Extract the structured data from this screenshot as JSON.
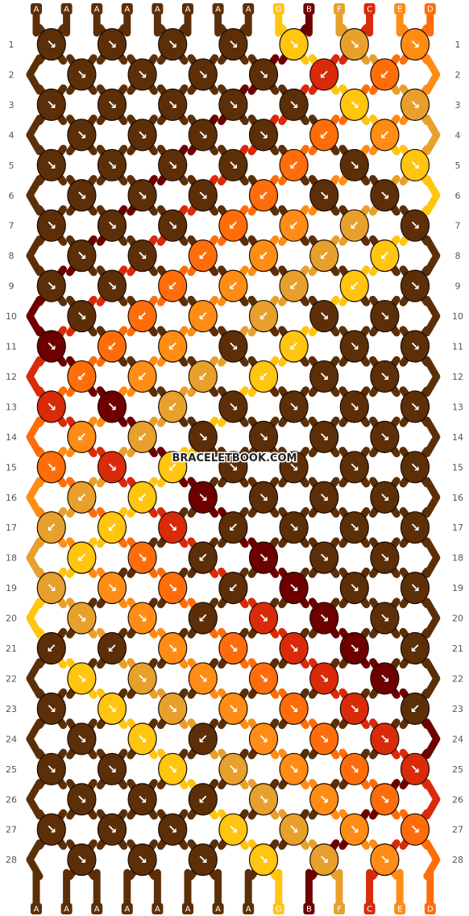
{
  "watermark": "BRACELETBOOK.COM",
  "strings": [
    "A",
    "A",
    "A",
    "A",
    "A",
    "A",
    "A",
    "A",
    "G",
    "B",
    "F",
    "C",
    "E",
    "D"
  ],
  "colors": {
    "A": "#5c2f08",
    "B": "#6e0000",
    "C": "#d92a0a",
    "D": "#ff6d0a",
    "E": "#ff8c14",
    "F": "#e8a02c",
    "G": "#ffc50f"
  },
  "row_numbers": [
    "1",
    "2",
    "3",
    "4",
    "5",
    "6",
    "7",
    "8",
    "9",
    "10",
    "11",
    "12",
    "13",
    "14",
    "15",
    "16",
    "17",
    "18",
    "19",
    "20",
    "21",
    "22",
    "23",
    "24",
    "25",
    "26",
    "27",
    "28"
  ]
}
